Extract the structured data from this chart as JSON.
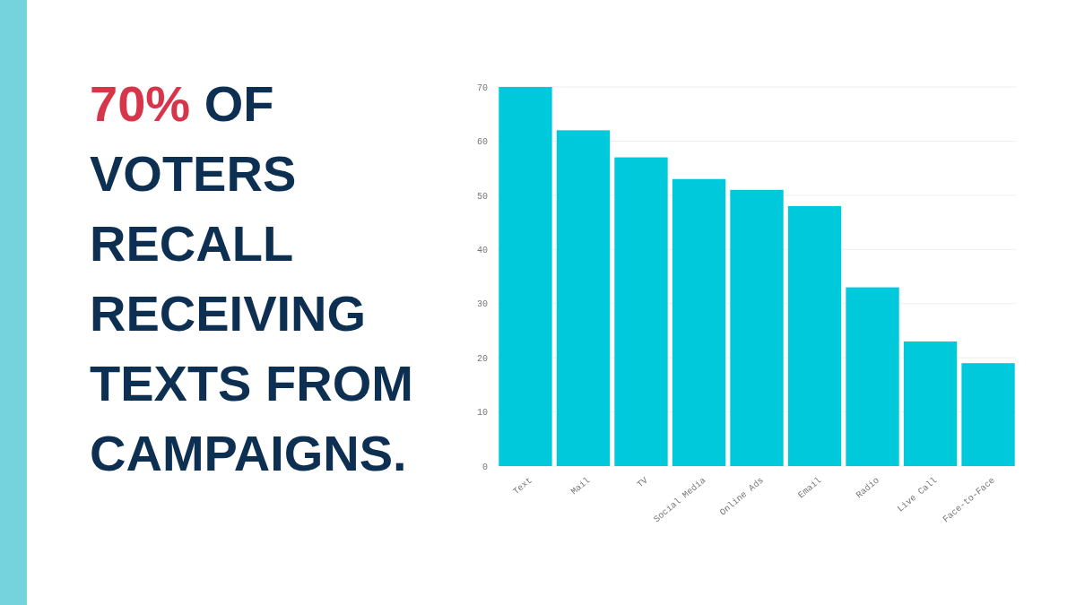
{
  "chart_data": {
    "type": "bar",
    "title": "70% OF VOTERS RECALL RECEIVING TEXTS FROM CAMPAIGNS.",
    "categories": [
      "Text",
      "Mail",
      "TV",
      "Social Media",
      "Online Ads",
      "Email",
      "Radio",
      "Live Call",
      "Face-to-Face"
    ],
    "values": [
      70,
      62,
      57,
      53,
      51,
      48,
      33,
      23,
      19
    ],
    "color": "#00c9dc",
    "ylim": [
      0,
      70
    ],
    "yticks": [
      0,
      10,
      20,
      30,
      40,
      50,
      60,
      70
    ],
    "grid": "y"
  }
}
